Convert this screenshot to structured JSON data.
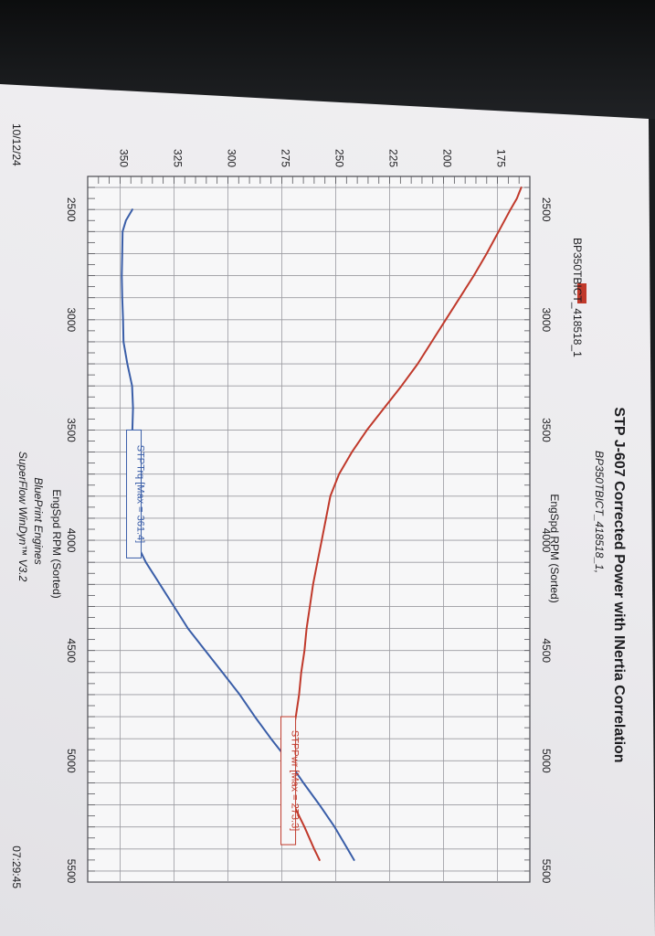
{
  "header": {
    "title": "STP J-607 Corrected Power with INertia Correlation",
    "subtitle": "BP350TBICT_418518_1,",
    "legend_name": "BP350TBICT_418518_1",
    "legend_color": "#c0392b"
  },
  "footer": {
    "date": "10/12/24",
    "time": "07:29:45",
    "company": "BluePrint Engines",
    "software": "SuperFlow WinDyn™ V3.2"
  },
  "chart_data": {
    "type": "line",
    "xlabel_top": "EngSpd RPM   (Sorted)",
    "xlabel_bottom": "EngSpd RPM   (Sorted)",
    "xlim": [
      2350,
      5550
    ],
    "ylim": [
      160,
      365
    ],
    "x_ticks": [
      "2500",
      "3000",
      "3500",
      "4000",
      "4500",
      "5000",
      "5500"
    ],
    "y_ticks": [
      "175",
      "200",
      "225",
      "250",
      "275",
      "300",
      "325",
      "350"
    ],
    "grid": true,
    "series": [
      {
        "name": "STPTrq",
        "annotation": "STPTrq [Max = 361.4]",
        "color": "#3a5ea8",
        "x": [
          2500,
          2550,
          2600,
          2700,
          2800,
          2900,
          3000,
          3100,
          3200,
          3300,
          3400,
          3500,
          3600,
          3700,
          3800,
          3900,
          4000,
          4100,
          4200,
          4300,
          4400,
          4500,
          4600,
          4700,
          4800,
          4900,
          5000,
          5100,
          5200,
          5300,
          5400,
          5450
        ],
        "y": [
          344.3,
          347.3,
          348.8,
          349.0,
          349.2,
          349.0,
          348.6,
          348.4,
          346.6,
          344.4,
          344.0,
          344.3,
          344.3,
          344.0,
          344.0,
          343.5,
          343.0,
          338.0,
          331.5,
          325.0,
          318.5,
          310.5,
          302.5,
          294.5,
          287.5,
          280.0,
          272.0,
          265.0,
          257.5,
          250.5,
          244.5,
          241.5
        ]
      },
      {
        "name": "STPPwr",
        "annotation": "STPPwr [Max = 273.3]",
        "color": "#c0392b",
        "x": [
          2400,
          2450,
          2500,
          2600,
          2700,
          2800,
          2900,
          3000,
          3100,
          3200,
          3300,
          3400,
          3500,
          3600,
          3700,
          3800,
          3900,
          4000,
          4100,
          4200,
          4300,
          4400,
          4500,
          4600,
          4700,
          4800,
          4900,
          5000,
          5100,
          5200,
          5300,
          5400,
          5450
        ],
        "y": [
          164.0,
          166.0,
          169.0,
          174.5,
          180.0,
          186.0,
          192.5,
          199.0,
          205.5,
          212.0,
          219.5,
          227.5,
          235.5,
          242.5,
          248.5,
          252.5,
          254.5,
          256.5,
          258.5,
          260.5,
          262.0,
          263.5,
          264.5,
          266.0,
          267.0,
          268.5,
          270.5,
          271.0,
          270.5,
          269.5,
          264.5,
          260.0,
          257.5
        ]
      }
    ]
  }
}
